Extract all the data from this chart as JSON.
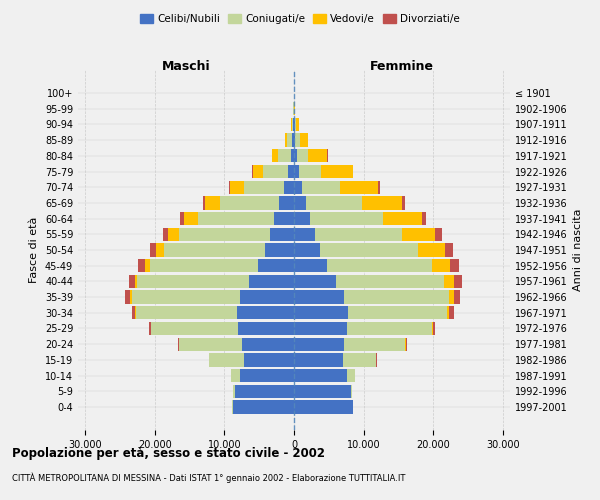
{
  "age_groups": [
    "0-4",
    "5-9",
    "10-14",
    "15-19",
    "20-24",
    "25-29",
    "30-34",
    "35-39",
    "40-44",
    "45-49",
    "50-54",
    "55-59",
    "60-64",
    "65-69",
    "70-74",
    "75-79",
    "80-84",
    "85-89",
    "90-94",
    "95-99",
    "100+"
  ],
  "birth_years": [
    "1997-2001",
    "1992-1996",
    "1987-1991",
    "1982-1986",
    "1977-1981",
    "1972-1976",
    "1967-1971",
    "1962-1966",
    "1957-1961",
    "1952-1956",
    "1947-1951",
    "1942-1946",
    "1937-1941",
    "1932-1936",
    "1927-1931",
    "1922-1926",
    "1917-1921",
    "1912-1916",
    "1907-1911",
    "1902-1906",
    "≤ 1901"
  ],
  "male_celibi": [
    8800,
    8500,
    7800,
    7200,
    7500,
    8000,
    8200,
    7800,
    6500,
    5200,
    4200,
    3500,
    2800,
    2100,
    1400,
    900,
    500,
    280,
    120,
    50,
    30
  ],
  "male_coniugati": [
    30,
    200,
    1200,
    5000,
    9000,
    12500,
    14500,
    15500,
    16000,
    15500,
    14500,
    13000,
    11000,
    8500,
    5800,
    3500,
    1800,
    700,
    200,
    30,
    10
  ],
  "male_vedovi": [
    0,
    1,
    2,
    5,
    15,
    30,
    80,
    200,
    350,
    700,
    1100,
    1600,
    2000,
    2200,
    2000,
    1500,
    800,
    350,
    100,
    20,
    5
  ],
  "male_divorziati": [
    0,
    3,
    15,
    60,
    150,
    300,
    500,
    700,
    900,
    1000,
    900,
    700,
    500,
    280,
    150,
    80,
    40,
    20,
    8,
    2,
    0
  ],
  "female_celibi": [
    8500,
    8200,
    7600,
    7000,
    7200,
    7600,
    7800,
    7200,
    6000,
    4800,
    3800,
    3000,
    2300,
    1700,
    1100,
    700,
    380,
    200,
    100,
    40,
    20
  ],
  "female_coniugati": [
    25,
    180,
    1100,
    4800,
    8800,
    12200,
    14200,
    15000,
    15500,
    15000,
    14000,
    12500,
    10500,
    8000,
    5500,
    3200,
    1600,
    600,
    150,
    20,
    5
  ],
  "female_vedovi": [
    0,
    1,
    3,
    12,
    40,
    100,
    280,
    700,
    1400,
    2600,
    3800,
    4800,
    5500,
    5800,
    5500,
    4500,
    2800,
    1200,
    400,
    60,
    15
  ],
  "female_divorziati": [
    0,
    4,
    20,
    80,
    200,
    400,
    650,
    900,
    1200,
    1300,
    1200,
    1000,
    700,
    400,
    220,
    120,
    60,
    30,
    10,
    2,
    0
  ],
  "color_celibi": "#4472c4",
  "color_coniugati": "#c3d69b",
  "color_vedovi": "#ffc000",
  "color_divorziati": "#c0504d",
  "title": "Popolazione per età, sesso e stato civile - 2002",
  "subtitle": "CITTÀ METROPOLITANA DI MESSINA - Dati ISTAT 1° gennaio 2002 - Elaborazione TUTTITALIA.IT",
  "xlabel_left": "Maschi",
  "xlabel_right": "Femmine",
  "ylabel_left": "Fasce di età",
  "ylabel_right": "Anni di nascita",
  "xticks": [
    -30000,
    -20000,
    -10000,
    0,
    10000,
    20000,
    30000
  ],
  "xlabels": [
    "30.000",
    "20.000",
    "10.000",
    "0",
    "10.000",
    "20.000",
    "30.000"
  ],
  "xlim": [
    -31000,
    31000
  ],
  "background_color": "#f0f0f0",
  "grid_color": "#cccccc"
}
